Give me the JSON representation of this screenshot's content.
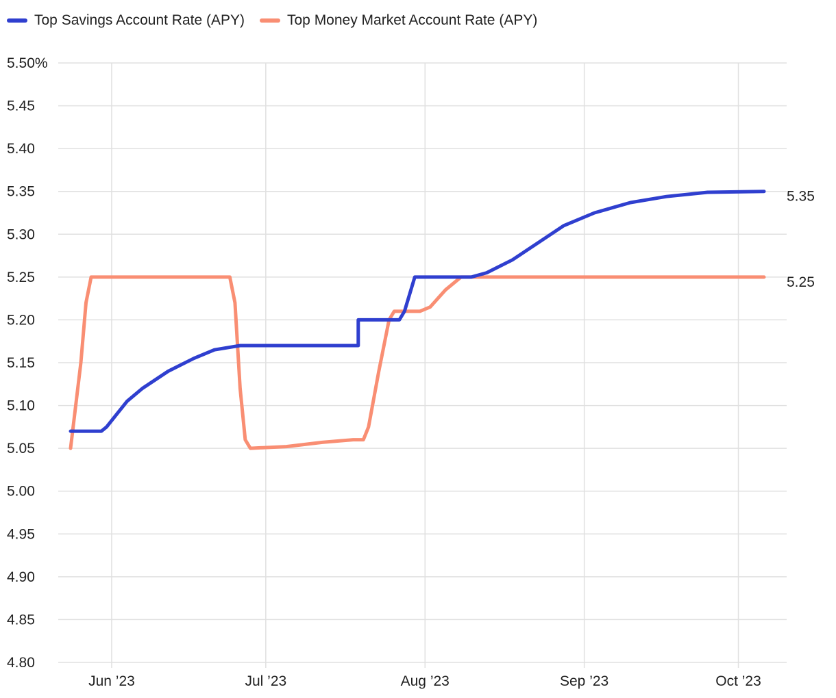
{
  "chart_data": {
    "type": "line",
    "legend_position": "top-left",
    "grid": true,
    "ylim": [
      4.8,
      5.5
    ],
    "xlim": [
      "2023-05-24",
      "2023-10-06"
    ],
    "x_ticks": [
      {
        "date": "2023-06-01",
        "label": "Jun ’23"
      },
      {
        "date": "2023-07-01",
        "label": "Jul ’23"
      },
      {
        "date": "2023-08-01",
        "label": "Aug ’23"
      },
      {
        "date": "2023-09-01",
        "label": "Sep ’23"
      },
      {
        "date": "2023-10-01",
        "label": "Oct ’23"
      }
    ],
    "y_ticks": [
      {
        "value": 5.5,
        "label": "5.50%"
      },
      {
        "value": 5.45,
        "label": "5.45"
      },
      {
        "value": 5.4,
        "label": "5.40"
      },
      {
        "value": 5.35,
        "label": "5.35"
      },
      {
        "value": 5.3,
        "label": "5.30"
      },
      {
        "value": 5.25,
        "label": "5.25"
      },
      {
        "value": 5.2,
        "label": "5.20"
      },
      {
        "value": 5.15,
        "label": "5.15"
      },
      {
        "value": 5.1,
        "label": "5.10"
      },
      {
        "value": 5.05,
        "label": "5.05"
      },
      {
        "value": 5.0,
        "label": "5.00"
      },
      {
        "value": 4.95,
        "label": "4.95"
      },
      {
        "value": 4.9,
        "label": "4.90"
      },
      {
        "value": 4.85,
        "label": "4.85"
      },
      {
        "value": 4.8,
        "label": "4.80"
      }
    ],
    "series": [
      {
        "name": "Top Savings Account Rate (APY)",
        "color": "#2f3fcf",
        "end_label": "5.35",
        "points": [
          [
            "2023-05-24",
            5.07
          ],
          [
            "2023-05-30",
            5.07
          ],
          [
            "2023-05-31",
            5.075
          ],
          [
            "2023-06-02",
            5.09
          ],
          [
            "2023-06-04",
            5.105
          ],
          [
            "2023-06-07",
            5.12
          ],
          [
            "2023-06-12",
            5.14
          ],
          [
            "2023-06-17",
            5.155
          ],
          [
            "2023-06-21",
            5.165
          ],
          [
            "2023-06-26",
            5.17
          ],
          [
            "2023-07-18",
            5.17
          ],
          [
            "2023-07-19",
            5.17
          ],
          [
            "2023-07-19",
            5.2
          ],
          [
            "2023-07-27",
            5.2
          ],
          [
            "2023-07-28",
            5.21
          ],
          [
            "2023-07-30",
            5.25
          ],
          [
            "2023-08-10",
            5.25
          ],
          [
            "2023-08-13",
            5.255
          ],
          [
            "2023-08-18",
            5.27
          ],
          [
            "2023-08-23",
            5.29
          ],
          [
            "2023-08-28",
            5.31
          ],
          [
            "2023-09-03",
            5.325
          ],
          [
            "2023-09-10",
            5.337
          ],
          [
            "2023-09-17",
            5.344
          ],
          [
            "2023-09-25",
            5.349
          ],
          [
            "2023-10-06",
            5.35
          ]
        ]
      },
      {
        "name": "Top Money Market Account Rate (APY)",
        "color": "#f98e73",
        "end_label": "5.25",
        "points": [
          [
            "2023-05-24",
            5.05
          ],
          [
            "2023-05-26",
            5.15
          ],
          [
            "2023-05-27",
            5.22
          ],
          [
            "2023-05-28",
            5.25
          ],
          [
            "2023-06-24",
            5.25
          ],
          [
            "2023-06-25",
            5.22
          ],
          [
            "2023-06-26",
            5.12
          ],
          [
            "2023-06-27",
            5.06
          ],
          [
            "2023-06-28",
            5.05
          ],
          [
            "2023-07-05",
            5.052
          ],
          [
            "2023-07-12",
            5.057
          ],
          [
            "2023-07-18",
            5.06
          ],
          [
            "2023-07-20",
            5.06
          ],
          [
            "2023-07-21",
            5.075
          ],
          [
            "2023-07-23",
            5.14
          ],
          [
            "2023-07-25",
            5.2
          ],
          [
            "2023-07-26",
            5.21
          ],
          [
            "2023-07-31",
            5.21
          ],
          [
            "2023-08-02",
            5.215
          ],
          [
            "2023-08-05",
            5.235
          ],
          [
            "2023-08-08",
            5.25
          ],
          [
            "2023-10-06",
            5.25
          ]
        ]
      }
    ]
  }
}
